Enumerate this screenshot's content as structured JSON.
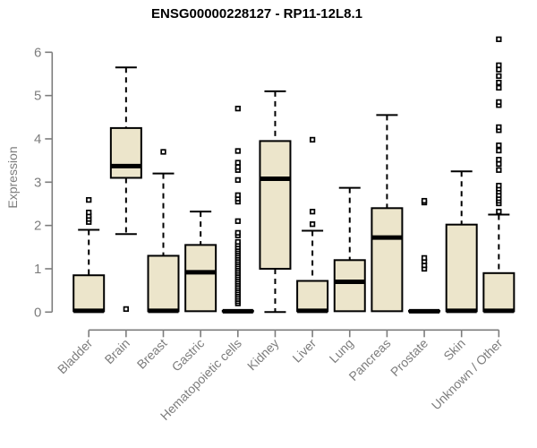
{
  "page": {
    "background": "#ffffff"
  },
  "chart_data": {
    "type": "boxplot",
    "title": "ENSG00000228127 - RP11-12L8.1",
    "ylabel": "Expression",
    "xlabel": "",
    "ylim": [
      0,
      6
    ],
    "yticks": [
      0,
      1,
      2,
      3,
      4,
      5,
      6
    ],
    "grid": false,
    "legend": "none",
    "colors": {
      "box_fill": "#ece5cb",
      "box_border": "#000000",
      "median": "#000000",
      "whisker": "#000000",
      "outlier": "#000000",
      "axis_line": "#7d7d7d",
      "tick_label": "#7d7d7d",
      "title_text": "#000000"
    },
    "categories": [
      "Bladder",
      "Brain",
      "Breast",
      "Gastric",
      "Hematopoietic cells",
      "Kidney",
      "Liver",
      "Lung",
      "Pancreas",
      "Prostate",
      "Skin",
      "Unknown / Other"
    ],
    "series": [
      {
        "name": "Bladder",
        "low": 0.02,
        "q1": 0.02,
        "median": 0.03,
        "q3": 0.85,
        "high": 1.9,
        "outliers": [
          2.08,
          2.15,
          2.22,
          2.3,
          2.59
        ]
      },
      {
        "name": "Brain",
        "low": 1.8,
        "q1": 3.1,
        "median": 3.37,
        "q3": 4.25,
        "high": 5.65,
        "outliers": [
          0.07
        ]
      },
      {
        "name": "Breast",
        "low": 0.02,
        "q1": 0.02,
        "median": 0.03,
        "q3": 1.3,
        "high": 3.2,
        "outliers": [
          3.7
        ]
      },
      {
        "name": "Gastric",
        "low": 0.02,
        "q1": 0.02,
        "median": 0.92,
        "q3": 1.55,
        "high": 2.32,
        "outliers": []
      },
      {
        "name": "Hematopoietic cells",
        "low": 0.02,
        "q1": 0.02,
        "median": 0.02,
        "q3": 0.03,
        "high": 0.03,
        "outliers": [
          0.2,
          0.25,
          0.3,
          0.35,
          0.4,
          0.45,
          0.5,
          0.55,
          0.6,
          0.65,
          0.7,
          0.75,
          0.8,
          0.85,
          0.9,
          0.95,
          1.0,
          1.05,
          1.1,
          1.15,
          1.2,
          1.25,
          1.3,
          1.35,
          1.4,
          1.45,
          1.5,
          1.56,
          1.62,
          1.77,
          1.83,
          2.1,
          2.55,
          2.62,
          2.7,
          3.05,
          3.28,
          3.35,
          3.45,
          3.72,
          4.7
        ]
      },
      {
        "name": "Kidney",
        "low": 0.0,
        "q1": 1.0,
        "median": 3.08,
        "q3": 3.95,
        "high": 5.1,
        "outliers": []
      },
      {
        "name": "Liver",
        "low": 0.02,
        "q1": 0.02,
        "median": 0.03,
        "q3": 0.72,
        "high": 1.88,
        "outliers": [
          2.03,
          2.32,
          3.98
        ]
      },
      {
        "name": "Lung",
        "low": 0.02,
        "q1": 0.02,
        "median": 0.7,
        "q3": 1.2,
        "high": 2.87,
        "outliers": []
      },
      {
        "name": "Pancreas",
        "low": 0.02,
        "q1": 0.02,
        "median": 1.72,
        "q3": 2.4,
        "high": 4.55,
        "outliers": []
      },
      {
        "name": "Prostate",
        "low": 0.02,
        "q1": 0.02,
        "median": 0.02,
        "q3": 0.03,
        "high": 0.03,
        "outliers": [
          1.0,
          1.08,
          1.17,
          1.25,
          2.53,
          2.57
        ]
      },
      {
        "name": "Skin",
        "low": 0.02,
        "q1": 0.02,
        "median": 0.03,
        "q3": 2.02,
        "high": 3.25,
        "outliers": []
      },
      {
        "name": "Unknown / Other",
        "low": 0.02,
        "q1": 0.02,
        "median": 0.03,
        "q3": 0.9,
        "high": 2.25,
        "outliers": [
          2.32,
          2.51,
          2.57,
          2.63,
          2.7,
          2.78,
          2.85,
          2.92,
          3.28,
          3.42,
          3.52,
          3.73,
          3.85,
          4.2,
          4.27,
          4.78,
          4.85,
          5.18,
          5.3,
          5.45,
          5.6,
          5.7,
          6.3
        ]
      }
    ]
  }
}
